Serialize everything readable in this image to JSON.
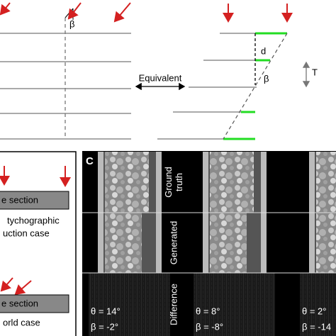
{
  "panel_a": {
    "left_angle": "β",
    "spacing": "d",
    "right_angle": "β",
    "thickness": "T",
    "arrow_label": "Equivalent"
  },
  "panel_b": {
    "slab_1": "e section",
    "caption_1": [
      "tychographic",
      "uction case"
    ],
    "slab_2": "e section",
    "caption_2": "orld case"
  },
  "panel_c": {
    "label": "C",
    "row_labels": [
      [
        "Ground",
        "truth"
      ],
      [
        "Generated"
      ],
      [
        "Difference"
      ]
    ],
    "columns": [
      {
        "theta": "θ = 14°",
        "beta": "β = -2°"
      },
      {
        "theta": "θ = 8°",
        "beta": "β = -8°"
      },
      {
        "theta": "θ = 2°",
        "beta": "β = -14"
      }
    ]
  }
}
